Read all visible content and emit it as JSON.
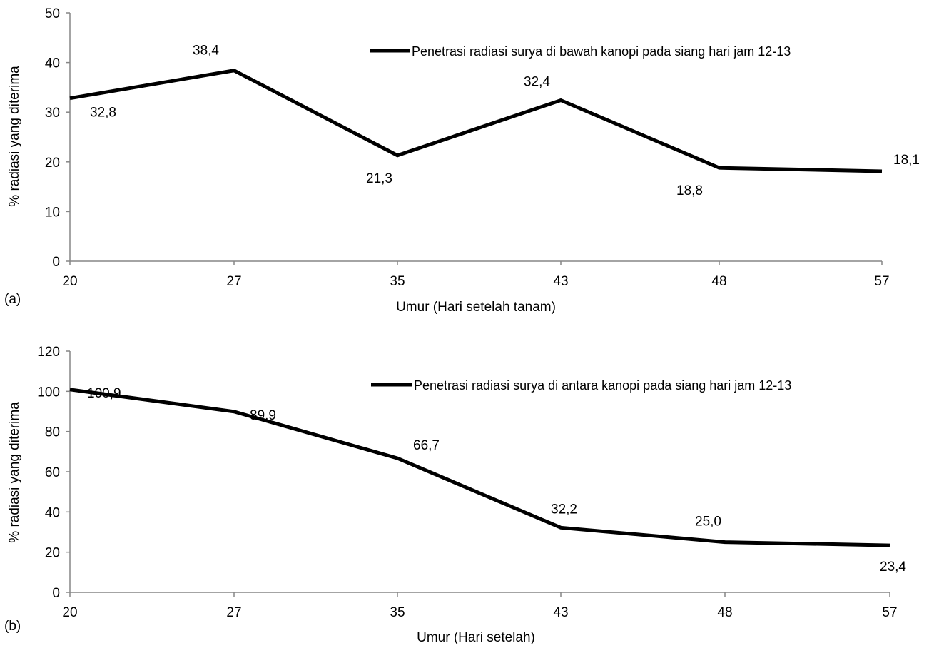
{
  "chart_data": [
    {
      "type": "line",
      "panel_label": "(a)",
      "categories": [
        "20",
        "27",
        "35",
        "43",
        "48",
        "57"
      ],
      "series": [
        {
          "name": "Penetrasi radiasi surya di bawah kanopi pada siang hari jam 12-13",
          "values": [
            32.8,
            38.4,
            21.3,
            32.4,
            18.8,
            18.1
          ],
          "labels": [
            "32,8",
            "38,4",
            "21,3",
            "32,4",
            "18,8",
            "18,1"
          ],
          "color": "#000000"
        }
      ],
      "xlabel": "Umur (Hari setelah tanam)",
      "ylabel": "% radiasi yang diterima",
      "ylim": [
        0,
        50
      ],
      "yticks": [
        "0",
        "10",
        "20",
        "30",
        "40",
        "50"
      ],
      "grid": false,
      "legend_position": "top-right"
    },
    {
      "type": "line",
      "panel_label": "(b)",
      "categories": [
        "20",
        "27",
        "35",
        "43",
        "48",
        "57"
      ],
      "series": [
        {
          "name": "Penetrasi radiasi surya di antara kanopi pada siang hari jam 12-13",
          "values": [
            100.9,
            89.9,
            66.7,
            32.2,
            25.0,
            23.4
          ],
          "labels": [
            "100,9",
            "89,9",
            "66,7",
            "32,2",
            "25,0",
            "23,4"
          ],
          "color": "#000000"
        }
      ],
      "xlabel": "Umur (Hari setelah)",
      "ylabel": "% radiasi yang diterima",
      "ylim": [
        0,
        120
      ],
      "yticks": [
        "0",
        "20",
        "40",
        "60",
        "80",
        "100",
        "120"
      ],
      "grid": false,
      "legend_position": "top-right"
    }
  ]
}
